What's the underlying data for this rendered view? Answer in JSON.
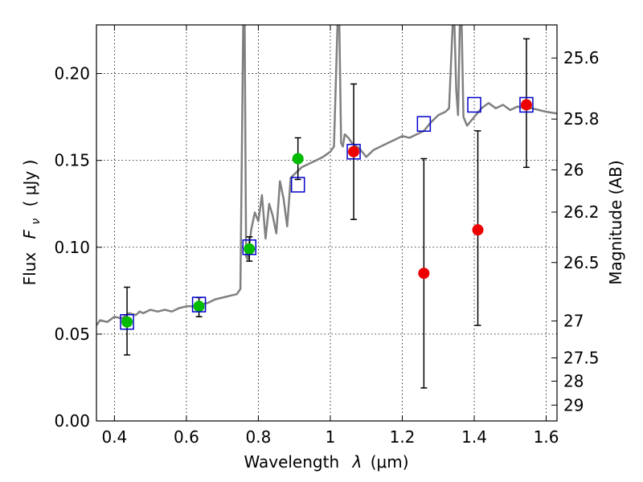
{
  "chart_data": {
    "type": "scatter",
    "xlabel": "Wavelength",
    "xlabel_symbol": "λ",
    "xlabel_unit": "(μm)",
    "ylabel": "Flux",
    "ylabel_symbol": "F",
    "ylabel_subscript": "ν",
    "ylabel_unit": "( μJy )",
    "y2label": "Magnitude (AB)",
    "xlim": [
      0.35,
      1.63
    ],
    "ylim": [
      0.0,
      0.228
    ],
    "grid": true,
    "x_ticks": [
      0.4,
      0.6,
      0.8,
      1.0,
      1.2,
      1.4,
      1.6
    ],
    "x_tick_labels": [
      "0.4",
      "0.6",
      "0.8",
      "1",
      "1.2",
      "1.4",
      "1.6"
    ],
    "y_ticks": [
      0.0,
      0.05,
      0.1,
      0.15,
      0.2
    ],
    "y_tick_labels": [
      "0.00",
      "0.05",
      "0.10",
      "0.15",
      "0.20"
    ],
    "y2_tick_labels": [
      "25.6",
      "25.8",
      "26",
      "26.2",
      "26.5",
      "27",
      "27.5",
      "28",
      "29"
    ],
    "colors": {
      "spectrum": "#808080",
      "green": "#00bb00",
      "red": "#ee0000",
      "model": "#0000cc",
      "errorbar": "#000000"
    },
    "series": [
      {
        "kind": "line",
        "x": [
          0.35,
          0.36,
          0.38,
          0.4,
          0.42,
          0.44,
          0.46,
          0.47,
          0.48,
          0.5,
          0.52,
          0.54,
          0.56,
          0.58,
          0.6,
          0.62,
          0.64,
          0.66,
          0.68,
          0.7,
          0.72,
          0.74,
          0.75,
          0.758,
          0.762,
          0.766,
          0.77,
          0.78,
          0.79,
          0.8,
          0.81,
          0.82,
          0.83,
          0.84,
          0.85,
          0.86,
          0.87,
          0.88,
          0.89,
          0.9,
          0.92,
          0.94,
          0.96,
          0.98,
          1.0,
          1.01,
          1.02,
          1.025,
          1.03,
          1.035,
          1.04,
          1.05,
          1.06,
          1.08,
          1.1,
          1.12,
          1.14,
          1.16,
          1.18,
          1.2,
          1.22,
          1.24,
          1.26,
          1.28,
          1.3,
          1.32,
          1.33,
          1.34,
          1.345,
          1.35,
          1.355,
          1.36,
          1.365,
          1.37,
          1.38,
          1.4,
          1.42,
          1.44,
          1.46,
          1.48,
          1.5,
          1.52,
          1.54,
          1.56,
          1.58,
          1.6,
          1.63
        ],
        "y": [
          0.055,
          0.058,
          0.057,
          0.06,
          0.059,
          0.062,
          0.061,
          0.063,
          0.062,
          0.064,
          0.063,
          0.064,
          0.063,
          0.065,
          0.066,
          0.066,
          0.067,
          0.068,
          0.07,
          0.071,
          0.072,
          0.073,
          0.076,
          0.228,
          0.228,
          0.095,
          0.093,
          0.11,
          0.12,
          0.115,
          0.13,
          0.105,
          0.125,
          0.118,
          0.108,
          0.138,
          0.128,
          0.112,
          0.14,
          0.142,
          0.146,
          0.148,
          0.15,
          0.152,
          0.155,
          0.158,
          0.228,
          0.228,
          0.16,
          0.158,
          0.165,
          0.163,
          0.16,
          0.157,
          0.152,
          0.156,
          0.158,
          0.16,
          0.162,
          0.164,
          0.163,
          0.165,
          0.167,
          0.172,
          0.176,
          0.178,
          0.18,
          0.228,
          0.228,
          0.19,
          0.176,
          0.228,
          0.228,
          0.175,
          0.17,
          0.175,
          0.18,
          0.183,
          0.18,
          0.182,
          0.179,
          0.181,
          0.18,
          0.18,
          0.179,
          0.178,
          0.177
        ]
      },
      {
        "kind": "points",
        "marker": "circle",
        "color": "green",
        "x": [
          0.435,
          0.635,
          0.775,
          0.91
        ],
        "y": [
          0.057,
          0.066,
          0.099,
          0.151
        ],
        "err_low": [
          0.038,
          0.06,
          0.092,
          0.139
        ],
        "err_high": [
          0.077,
          0.071,
          0.106,
          0.163
        ]
      },
      {
        "kind": "points",
        "marker": "circle",
        "color": "red",
        "x": [
          1.065,
          1.26,
          1.41,
          1.545
        ],
        "y": [
          0.155,
          0.085,
          0.11,
          0.182
        ],
        "err_low": [
          0.116,
          0.019,
          0.055,
          0.146
        ],
        "err_high": [
          0.194,
          0.151,
          0.167,
          0.22
        ]
      },
      {
        "kind": "points",
        "marker": "open-square",
        "color": "model",
        "x": [
          0.435,
          0.635,
          0.775,
          0.91,
          1.065,
          1.26,
          1.4,
          1.545
        ],
        "y": [
          0.057,
          0.067,
          0.1,
          0.136,
          0.155,
          0.171,
          0.182,
          0.182
        ]
      }
    ]
  }
}
